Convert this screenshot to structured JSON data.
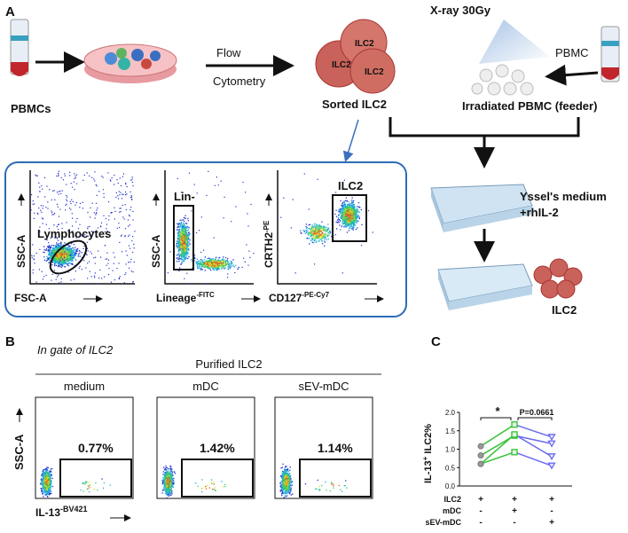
{
  "panel_a": {
    "label": "A",
    "pbmcs": "PBMCs",
    "flow": "Flow",
    "cytometry": "Cytometry",
    "cells": [
      "ILC2",
      "ILC2",
      "ILC2"
    ],
    "sorted": "Sorted ILC2",
    "xray": "X-ray 30Gy",
    "pbmc": "PBMC",
    "irradiated": "Irradiated PBMC (feeder)",
    "medium": "Yssel's medium",
    "rhil2": "+rhIL-2",
    "ilc2_out": "ILC2",
    "gates": [
      {
        "y_label": "SSC-A",
        "x_label": "FSC-A",
        "gate": "Lymphocytes"
      },
      {
        "y_label": "SSC-A",
        "x_label": "Lineage",
        "x_sup": "-FITC",
        "gate": "Lin-"
      },
      {
        "y_label": "CRTH2",
        "y_sup": "-PE",
        "x_label": "CD127",
        "x_sup": "-PE-Cy7",
        "gate": "ILC2"
      }
    ]
  },
  "panel_b": {
    "label": "B",
    "gate_title": "In gate of ILC2",
    "group": "Purified ILC2",
    "conditions": [
      "medium",
      "mDC",
      "sEV-mDC"
    ],
    "percentages": [
      "0.77%",
      "1.42%",
      "1.14%"
    ],
    "y_label": "SSC-A",
    "x_label": "IL-13",
    "x_sup": "-BV421"
  },
  "chart_data": {
    "type": "line",
    "label": "C",
    "y_label": "IL-13",
    "y_sup": "+",
    "y_label_end": " ILC2%",
    "categories": [
      null,
      null,
      null
    ],
    "ylim": [
      0,
      2
    ],
    "yticks": [
      {
        "value": 0,
        "label": "0.0"
      },
      {
        "value": 0.5,
        "label": "0.5"
      },
      {
        "value": 1,
        "label": "1.0"
      },
      {
        "value": 1.5,
        "label": "1.5"
      },
      {
        "value": 2,
        "label": "2.0"
      }
    ],
    "series": [
      {
        "values": [
          1.08,
          1.67,
          1.33
        ]
      },
      {
        "values": [
          0.83,
          1.37,
          1.15
        ]
      },
      {
        "values": [
          0.6,
          1.4,
          0.8
        ]
      },
      {
        "values": [
          0.6,
          0.92,
          0.55
        ]
      }
    ],
    "marker_colors": [
      "#999999",
      "#33c233",
      "#6a6af0"
    ],
    "segment_colors": [
      "#33c233",
      "#6a6af0"
    ],
    "significance": [
      "*",
      "P=0.0661"
    ],
    "table": [
      {
        "label": "ILC2",
        "signs": [
          "+",
          "+",
          "+"
        ]
      },
      {
        "label": "mDC",
        "signs": [
          "-",
          "+",
          "-"
        ]
      },
      {
        "label": "sEV-mDC",
        "signs": [
          "-",
          "-",
          "+"
        ]
      }
    ]
  }
}
